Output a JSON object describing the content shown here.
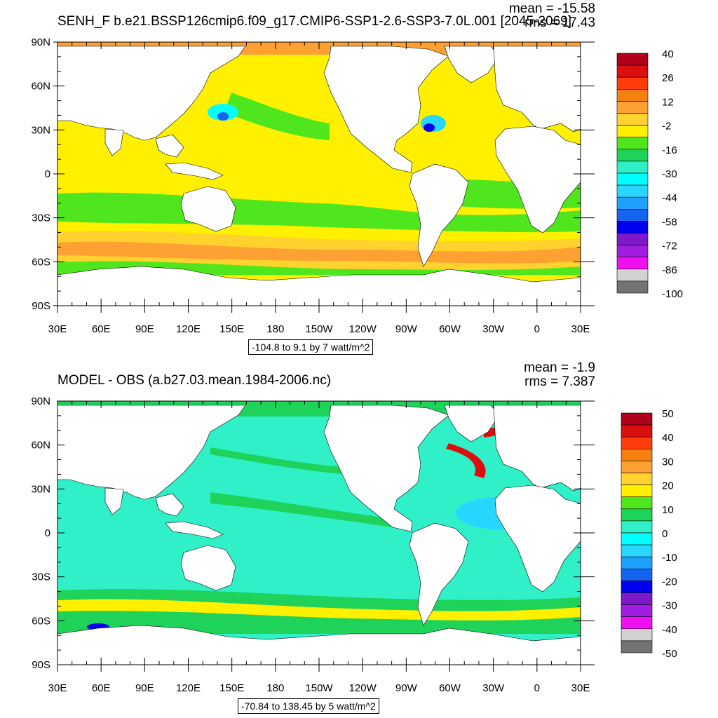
{
  "panels": [
    {
      "id": "top",
      "title": "SENH_F b.e21.BSSP126cmip6.f09_g17.CMIP6-SSP1-2.6-SSP3-7.0L.001 [2045-2069]",
      "mean": "mean = -15.58",
      "rms": "rms = 17.43",
      "range": "-104.8 to 9.1 by 7 watt/m^2",
      "lat_labels": [
        "90N",
        "60N",
        "30N",
        "0",
        "30S",
        "60S",
        "90S"
      ],
      "lon_labels": [
        "30E",
        "60E",
        "90E",
        "120E",
        "150E",
        "180",
        "150W",
        "120W",
        "90W",
        "60W",
        "30W",
        "0",
        "30E"
      ],
      "colorbar_labels": [
        "40",
        "26",
        "12",
        "-2",
        "-16",
        "-30",
        "-44",
        "-58",
        "-72",
        "-86",
        "-100"
      ],
      "colorbar_colors": [
        "#b0001a",
        "#dc0f0f",
        "#ff3c0a",
        "#f5820f",
        "#ffa032",
        "#ffd22d",
        "#fff000",
        "#50e61e",
        "#1ed25a",
        "#30f0c8",
        "#00ffff",
        "#28d7ff",
        "#1ea0ff",
        "#1464f0",
        "#0000f0",
        "#7d19c8",
        "#a01ee1",
        "#f00ff0",
        "#d2d2d2",
        "#737373"
      ]
    },
    {
      "id": "bottom",
      "title": "MODEL - OBS (a.b27.03.mean.1984-2006.nc)",
      "mean": "mean = -1.9",
      "rms": "rms = 7.387",
      "range": "-70.84 to 138.45 by 5 watt/m^2",
      "lat_labels": [
        "90N",
        "60N",
        "30N",
        "0",
        "30S",
        "60S",
        "90S"
      ],
      "lon_labels": [
        "30E",
        "60E",
        "90E",
        "120E",
        "150E",
        "180",
        "150W",
        "120W",
        "90W",
        "60W",
        "30W",
        "0",
        "30E"
      ],
      "colorbar_labels": [
        "50",
        "40",
        "30",
        "20",
        "10",
        "0",
        "-10",
        "-20",
        "-30",
        "-40",
        "-50"
      ],
      "colorbar_colors": [
        "#b0001a",
        "#dc0f0f",
        "#ff3c0a",
        "#f5820f",
        "#ffa032",
        "#ffd22d",
        "#fff000",
        "#50e61e",
        "#1ed25a",
        "#30f0c8",
        "#00ffff",
        "#28d7ff",
        "#1ea0ff",
        "#1464f0",
        "#0000f0",
        "#7d19c8",
        "#a01ee1",
        "#f00ff0",
        "#d2d2d2",
        "#737373"
      ]
    }
  ]
}
